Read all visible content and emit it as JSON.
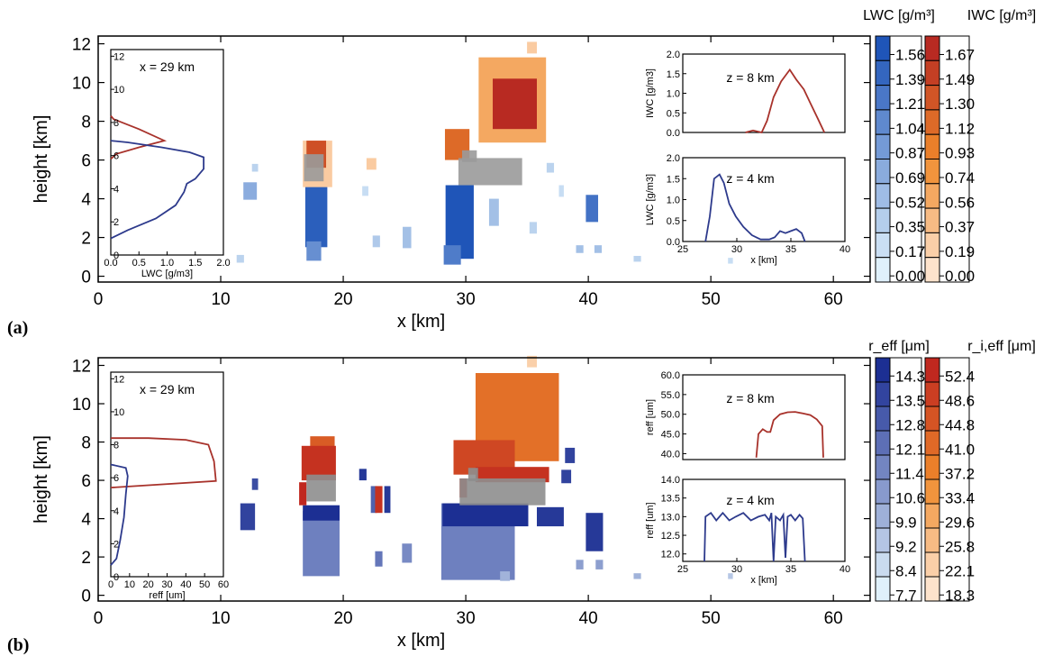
{
  "figure": {
    "panels": [
      {
        "label": "(a)",
        "xlabel": "x [km]",
        "ylabel": "height [km]",
        "xticks": [
          "0",
          "10",
          "20",
          "30",
          "40",
          "50",
          "60"
        ],
        "yticks": [
          "0",
          "2",
          "4",
          "6",
          "8",
          "10",
          "12"
        ],
        "xlim": [
          0,
          63
        ],
        "ylim": [
          -0.3,
          12.4
        ],
        "liquid_colorbar": {
          "title": "LWC [g/m³]",
          "levels": [
            "1.56",
            "1.39",
            "1.21",
            "1.04",
            "0.87",
            "0.69",
            "0.52",
            "0.35",
            "0.17",
            "0.00"
          ]
        },
        "ice_colorbar": {
          "title": "IWC [g/m³]",
          "levels": [
            "1.67",
            "1.49",
            "1.30",
            "1.12",
            "0.93",
            "0.74",
            "0.56",
            "0.37",
            "0.19",
            "0.00"
          ]
        },
        "left_inset": {
          "label": "x = 29 km",
          "xlabel": "LWC [g/m3]",
          "xticks": [
            "0.0",
            "0.5",
            "1.0",
            "1.5",
            "2.0"
          ],
          "yticks": [
            "0",
            "2",
            "4",
            "6",
            "8",
            "10",
            "12"
          ]
        },
        "top_inset": {
          "label": "z = 8 km",
          "ylabel": "IWC [g/m3]",
          "yticks": [
            "0.0",
            "0.5",
            "1.0",
            "1.5",
            "2.0"
          ]
        },
        "bottom_inset": {
          "label": "z = 4 km",
          "ylabel": "LWC [g/m3]",
          "xlabel": "x [km]",
          "xticks": [
            "25",
            "30",
            "35",
            "40"
          ],
          "yticks": [
            "0.0",
            "0.5",
            "1.0",
            "1.5",
            "2.0"
          ]
        }
      },
      {
        "label": "(b)",
        "xlabel": "x [km]",
        "ylabel": "height [km]",
        "xticks": [
          "0",
          "10",
          "20",
          "30",
          "40",
          "50",
          "60"
        ],
        "yticks": [
          "0",
          "2",
          "4",
          "6",
          "8",
          "10",
          "12"
        ],
        "xlim": [
          0,
          63
        ],
        "ylim": [
          -0.3,
          12.4
        ],
        "liquid_colorbar": {
          "title": "r_eff [μm]",
          "levels": [
            "14.3",
            "13.5",
            "12.8",
            "12.1",
            "11.4",
            "10.6",
            "9.9",
            "9.2",
            "8.4",
            "7.7"
          ]
        },
        "ice_colorbar": {
          "title": "r_i,eff [μm]",
          "levels": [
            "52.4",
            "48.6",
            "44.8",
            "41.0",
            "37.2",
            "33.4",
            "29.6",
            "25.8",
            "22.1",
            "18.3"
          ]
        },
        "left_inset": {
          "label": "x = 29 km",
          "xlabel": "reff [um]",
          "xticks": [
            "0",
            "10",
            "20",
            "30",
            "40",
            "50",
            "60"
          ],
          "yticks": [
            "0",
            "2",
            "4",
            "6",
            "8",
            "10",
            "12"
          ]
        },
        "top_inset": {
          "label": "z = 8 km",
          "ylabel": "reff [um]",
          "yticks": [
            "40.0",
            "45.0",
            "50.0",
            "55.0",
            "60.0"
          ]
        },
        "bottom_inset": {
          "label": "z = 4 km",
          "ylabel": "reff [um]",
          "xlabel": "x [km]",
          "xticks": [
            "25",
            "30",
            "35",
            "40"
          ],
          "yticks": [
            "12.0",
            "12.5",
            "13.0",
            "13.5",
            "14.0"
          ]
        }
      }
    ]
  },
  "chart_data": [
    {
      "type": "heatmap",
      "title": "",
      "xlabel": "x [km]",
      "ylabel": "height [km]",
      "xlim": [
        0,
        63
      ],
      "ylim": [
        0,
        12.4
      ],
      "grid": false,
      "colors": {
        "liquid_low": "#dff0fb",
        "liquid_high": "#1f55b8",
        "ice_low": "#fde3cc",
        "ice_mid": "#f08a2b",
        "ice_high": "#b82a22",
        "mixed": "#9a9a9a"
      },
      "liquid_cells": [
        {
          "x": 17.8,
          "y": 3.2,
          "w": 1.8,
          "h": 3.4,
          "v": 1.5
        },
        {
          "x": 17.6,
          "y": 1.3,
          "w": 1.2,
          "h": 1.0,
          "v": 1.0
        },
        {
          "x": 12.4,
          "y": 4.4,
          "w": 1.1,
          "h": 0.9,
          "v": 0.7
        },
        {
          "x": 12.8,
          "y": 5.6,
          "w": 0.5,
          "h": 0.4,
          "v": 0.3
        },
        {
          "x": 11.6,
          "y": 0.9,
          "w": 0.6,
          "h": 0.4,
          "v": 0.3
        },
        {
          "x": 21.8,
          "y": 4.4,
          "w": 0.5,
          "h": 0.5,
          "v": 0.2
        },
        {
          "x": 22.7,
          "y": 1.8,
          "w": 0.6,
          "h": 0.6,
          "v": 0.4
        },
        {
          "x": 25.2,
          "y": 2.0,
          "w": 0.7,
          "h": 1.1,
          "v": 0.5
        },
        {
          "x": 29.5,
          "y": 2.8,
          "w": 2.3,
          "h": 3.8,
          "v": 1.6
        },
        {
          "x": 28.9,
          "y": 1.1,
          "w": 1.4,
          "h": 1.0,
          "v": 1.2
        },
        {
          "x": 32.3,
          "y": 3.3,
          "w": 0.8,
          "h": 1.4,
          "v": 0.5
        },
        {
          "x": 35.5,
          "y": 2.5,
          "w": 0.6,
          "h": 0.6,
          "v": 0.3
        },
        {
          "x": 36.9,
          "y": 5.6,
          "w": 0.6,
          "h": 0.5,
          "v": 0.3
        },
        {
          "x": 37.8,
          "y": 4.4,
          "w": 0.4,
          "h": 0.6,
          "v": 0.2
        },
        {
          "x": 40.3,
          "y": 3.5,
          "w": 1.0,
          "h": 1.4,
          "v": 1.3
        },
        {
          "x": 39.3,
          "y": 1.4,
          "w": 0.6,
          "h": 0.4,
          "v": 0.5
        },
        {
          "x": 40.8,
          "y": 1.4,
          "w": 0.6,
          "h": 0.4,
          "v": 0.5
        },
        {
          "x": 44.0,
          "y": 0.9,
          "w": 0.6,
          "h": 0.3,
          "v": 0.3
        },
        {
          "x": 51.6,
          "y": 0.8,
          "w": 0.4,
          "h": 0.3,
          "v": 0.2
        }
      ],
      "ice_cells": [
        {
          "x": 17.8,
          "y": 6.3,
          "w": 1.6,
          "h": 1.4,
          "v": 1.2
        },
        {
          "x": 17.9,
          "y": 5.8,
          "w": 2.4,
          "h": 2.4,
          "v": 0.2
        },
        {
          "x": 33.8,
          "y": 9.1,
          "w": 5.5,
          "h": 4.4,
          "v": 0.5
        },
        {
          "x": 34.0,
          "y": 8.9,
          "w": 3.6,
          "h": 2.6,
          "v": 1.5
        },
        {
          "x": 29.3,
          "y": 6.8,
          "w": 2.0,
          "h": 1.6,
          "v": 1.0
        },
        {
          "x": 35.4,
          "y": 11.8,
          "w": 0.8,
          "h": 0.6,
          "v": 0.2
        },
        {
          "x": 22.3,
          "y": 5.8,
          "w": 0.8,
          "h": 0.6,
          "v": 0.2
        }
      ],
      "mixed_cells": [
        {
          "x": 17.6,
          "y": 5.6,
          "w": 1.6,
          "h": 1.4
        },
        {
          "x": 32.0,
          "y": 5.4,
          "w": 5.2,
          "h": 1.4
        },
        {
          "x": 30.3,
          "y": 6.2,
          "w": 1.2,
          "h": 0.6
        }
      ],
      "left_inset": {
        "label": "x = 29 km",
        "xlabel": "LWC [g/m3]",
        "xlim": [
          0,
          2
        ],
        "ylim": [
          0,
          12.4
        ],
        "series": [
          {
            "quantity": "IWC",
            "color": "#a8322b",
            "x": [
              0.0,
              0.05,
              0.5,
              0.95,
              0.5,
              0.1,
              0.0
            ],
            "y": [
              8.4,
              8.2,
              7.6,
              6.9,
              6.5,
              6.1,
              5.8
            ]
          },
          {
            "quantity": "LWC",
            "color": "#2d3a8c",
            "x": [
              0.0,
              0.3,
              0.9,
              1.4,
              1.65,
              1.65,
              1.5,
              1.35,
              1.3,
              1.15,
              0.8,
              0.3,
              0.0
            ],
            "y": [
              6.9,
              6.8,
              6.5,
              6.2,
              5.9,
              5.2,
              4.6,
              4.3,
              3.8,
              3.0,
              2.2,
              1.5,
              1.0
            ]
          }
        ]
      },
      "top_inset": {
        "label": "z = 8 km",
        "ylabel": "IWC [g/m3]",
        "xlim": [
          25,
          40
        ],
        "ylim": [
          0,
          2
        ],
        "series": [
          {
            "quantity": "IWC",
            "color": "#a8322b",
            "x": [
              30.8,
              31.5,
              32.3,
              32.8,
              33.4,
              34.1,
              34.9,
              35.5,
              36.2,
              36.8,
              37.5,
              38.1
            ],
            "y": [
              0.0,
              0.05,
              0.0,
              0.3,
              0.9,
              1.3,
              1.6,
              1.35,
              1.1,
              0.75,
              0.35,
              0.0
            ]
          }
        ]
      },
      "bottom_inset": {
        "label": "z = 4 km",
        "ylabel": "LWC [g/m3]",
        "xlabel": "x [km]",
        "xlim": [
          25,
          40
        ],
        "ylim": [
          0,
          2
        ],
        "series": [
          {
            "quantity": "LWC",
            "color": "#2d3a8c",
            "x": [
              27.1,
              27.5,
              27.9,
              28.4,
              28.8,
              29.3,
              29.9,
              30.6,
              31.4,
              32.2,
              33.0,
              33.5,
              34.0,
              34.5,
              35.0,
              35.5,
              36.0,
              36.3
            ],
            "y": [
              0.0,
              0.6,
              1.5,
              1.6,
              1.4,
              0.9,
              0.6,
              0.35,
              0.15,
              0.05,
              0.05,
              0.1,
              0.25,
              0.2,
              0.25,
              0.3,
              0.2,
              0.0
            ]
          }
        ]
      }
    },
    {
      "type": "heatmap",
      "title": "",
      "xlabel": "x [km]",
      "ylabel": "height [km]",
      "xlim": [
        0,
        63
      ],
      "ylim": [
        0,
        12.4
      ],
      "grid": false,
      "colors": {
        "liquid_low": "#dff0fb",
        "liquid_high": "#1c2f93",
        "ice_low": "#fde3cc",
        "ice_mid": "#f08a2b",
        "ice_high": "#c0281f",
        "mixed": "#8e8e8e"
      },
      "liquid_cells": [
        {
          "x": 12.2,
          "y": 4.1,
          "w": 1.2,
          "h": 1.4,
          "v": 0.85
        },
        {
          "x": 12.8,
          "y": 5.8,
          "w": 0.5,
          "h": 0.6,
          "v": 0.8
        },
        {
          "x": 18.2,
          "y": 2.7,
          "w": 3.0,
          "h": 3.4,
          "v": 0.55
        },
        {
          "x": 18.2,
          "y": 4.3,
          "w": 3.0,
          "h": 0.8,
          "v": 0.95
        },
        {
          "x": 17.0,
          "y": 6.5,
          "w": 0.7,
          "h": 0.8,
          "v": 0.9
        },
        {
          "x": 21.6,
          "y": 6.3,
          "w": 0.6,
          "h": 0.6,
          "v": 0.9
        },
        {
          "x": 22.5,
          "y": 5.0,
          "w": 0.5,
          "h": 1.4,
          "v": 0.7
        },
        {
          "x": 23.6,
          "y": 5.0,
          "w": 0.5,
          "h": 1.4,
          "v": 0.9
        },
        {
          "x": 22.9,
          "y": 1.9,
          "w": 0.6,
          "h": 0.8,
          "v": 0.6
        },
        {
          "x": 25.2,
          "y": 2.2,
          "w": 0.8,
          "h": 1.0,
          "v": 0.5
        },
        {
          "x": 31.0,
          "y": 2.8,
          "w": 6.0,
          "h": 4.0,
          "v": 0.55
        },
        {
          "x": 31.6,
          "y": 4.2,
          "w": 7.0,
          "h": 1.2,
          "v": 0.95
        },
        {
          "x": 36.9,
          "y": 4.1,
          "w": 2.2,
          "h": 1.0,
          "v": 0.9
        },
        {
          "x": 38.5,
          "y": 7.3,
          "w": 0.8,
          "h": 0.8,
          "v": 0.85
        },
        {
          "x": 38.2,
          "y": 6.2,
          "w": 0.8,
          "h": 0.7,
          "v": 0.85
        },
        {
          "x": 40.5,
          "y": 3.3,
          "w": 1.4,
          "h": 2.0,
          "v": 0.9
        },
        {
          "x": 39.3,
          "y": 1.6,
          "w": 0.6,
          "h": 0.5,
          "v": 0.4
        },
        {
          "x": 40.9,
          "y": 1.6,
          "w": 0.6,
          "h": 0.5,
          "v": 0.4
        },
        {
          "x": 44.0,
          "y": 1.0,
          "w": 0.6,
          "h": 0.3,
          "v": 0.3
        },
        {
          "x": 51.6,
          "y": 1.0,
          "w": 0.4,
          "h": 0.3,
          "v": 0.2
        },
        {
          "x": 33.2,
          "y": 1.0,
          "w": 0.8,
          "h": 0.5,
          "v": 0.3
        }
      ],
      "ice_cells": [
        {
          "x": 18.0,
          "y": 6.9,
          "w": 2.8,
          "h": 1.8,
          "v": 0.9
        },
        {
          "x": 18.3,
          "y": 8.0,
          "w": 2.0,
          "h": 0.6,
          "v": 0.7
        },
        {
          "x": 16.7,
          "y": 5.3,
          "w": 0.6,
          "h": 1.2,
          "v": 0.95
        },
        {
          "x": 34.2,
          "y": 9.3,
          "w": 6.8,
          "h": 4.6,
          "v": 0.6
        },
        {
          "x": 31.5,
          "y": 7.2,
          "w": 5.0,
          "h": 1.8,
          "v": 0.8
        },
        {
          "x": 33.8,
          "y": 6.3,
          "w": 6.0,
          "h": 0.8,
          "v": 0.9
        },
        {
          "x": 29.8,
          "y": 5.6,
          "w": 0.6,
          "h": 1.0,
          "v": 0.95
        },
        {
          "x": 35.4,
          "y": 12.2,
          "w": 0.8,
          "h": 0.6,
          "v": 0.1
        },
        {
          "x": 22.9,
          "y": 5.0,
          "w": 0.6,
          "h": 1.4,
          "v": 0.9
        }
      ],
      "mixed_cells": [
        {
          "x": 18.2,
          "y": 5.6,
          "w": 2.4,
          "h": 1.4
        },
        {
          "x": 33.0,
          "y": 5.4,
          "w": 7.0,
          "h": 1.4
        },
        {
          "x": 30.6,
          "y": 6.3,
          "w": 0.8,
          "h": 0.7
        }
      ],
      "left_inset": {
        "label": "x = 29 km",
        "xlabel": "reff [um]",
        "xlim": [
          0,
          60
        ],
        "ylim": [
          0,
          12.4
        ],
        "series": [
          {
            "quantity": "ice reff",
            "color": "#a8322b",
            "x": [
              0,
              20,
              40,
              52,
              55,
              56,
              0
            ],
            "y": [
              8.4,
              8.4,
              8.3,
              8.0,
              7.0,
              5.8,
              5.4
            ]
          },
          {
            "quantity": "liquid reff",
            "color": "#2d3a8c",
            "x": [
              0,
              8,
              9,
              8,
              7,
              5,
              3,
              0
            ],
            "y": [
              6.8,
              6.6,
              6.1,
              5.0,
              3.6,
              2.2,
              1.1,
              0.7
            ]
          }
        ]
      },
      "top_inset": {
        "label": "z = 8 km",
        "ylabel": "reff [um]",
        "xlim": [
          25,
          40
        ],
        "ylim": [
          38.5,
          60
        ],
        "series": [
          {
            "quantity": "ice reff",
            "color": "#a8322b",
            "x": [
              31.8,
              32.0,
              32.4,
              32.8,
              33.1,
              33.4,
              34.0,
              34.7,
              35.4,
              36.1,
              36.8,
              37.4,
              37.9,
              38.0
            ],
            "y": [
              39.0,
              45.0,
              46.2,
              45.5,
              45.5,
              48.5,
              50.0,
              50.5,
              50.6,
              50.2,
              49.8,
              48.7,
              47.0,
              39.0
            ]
          }
        ]
      },
      "bottom_inset": {
        "label": "z = 4 km",
        "ylabel": "reff [um]",
        "xlabel": "x [km]",
        "xlim": [
          25,
          40
        ],
        "ylim": [
          11.8,
          14
        ],
        "series": [
          {
            "quantity": "liquid reff",
            "color": "#2d3a8c",
            "x": [
              27.0,
              27.1,
              27.6,
              28.1,
              28.7,
              29.3,
              29.9,
              30.6,
              31.3,
              32.0,
              32.6,
              33.0,
              33.2,
              33.4,
              33.6,
              34.0,
              34.3,
              34.5,
              34.7,
              35.0,
              35.4,
              35.8,
              36.1,
              36.3
            ],
            "y": [
              11.8,
              13.0,
              13.1,
              12.9,
              13.1,
              12.9,
              13.0,
              13.1,
              12.9,
              13.0,
              13.05,
              12.9,
              13.1,
              11.8,
              13.0,
              12.9,
              13.05,
              11.9,
              13.0,
              13.05,
              12.9,
              13.05,
              12.95,
              11.8
            ]
          }
        ]
      }
    }
  ]
}
